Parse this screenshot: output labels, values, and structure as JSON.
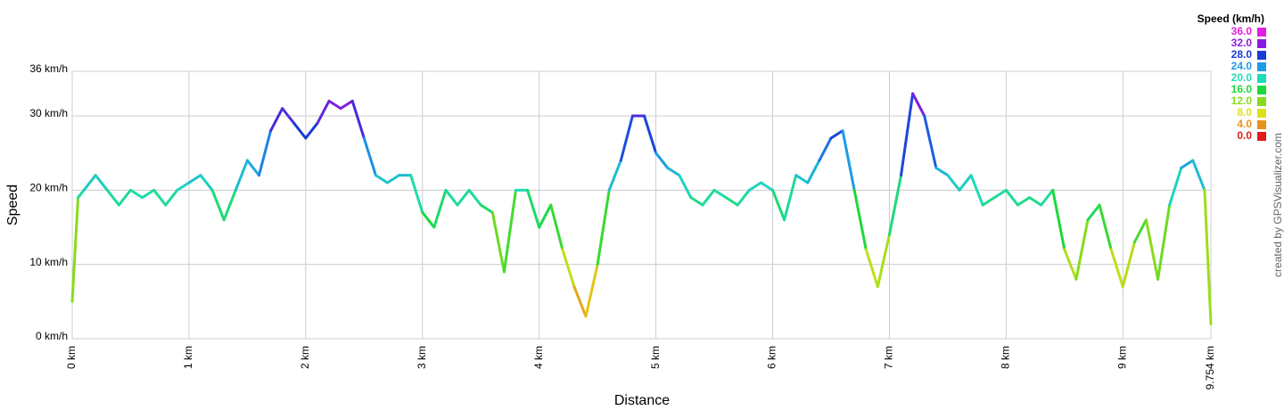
{
  "chart_data": {
    "type": "line",
    "x_label": "Distance",
    "y_label": "Speed",
    "credit": "created by GPSVisualizer.com",
    "legend": {
      "title": "Speed (km/h)",
      "stops": [
        {
          "value": 36,
          "label": "36.0",
          "color": "#e31ee3"
        },
        {
          "value": 32,
          "label": "32.0",
          "color": "#8a1be0"
        },
        {
          "value": 28,
          "label": "28.0",
          "color": "#1a3ad8"
        },
        {
          "value": 24,
          "label": "24.0",
          "color": "#1e9be6"
        },
        {
          "value": 20,
          "label": "20.0",
          "color": "#1edcb8"
        },
        {
          "value": 16,
          "label": "16.0",
          "color": "#1ed83a"
        },
        {
          "value": 12,
          "label": "12.0",
          "color": "#86dc1a"
        },
        {
          "value": 8,
          "label": "8.0",
          "color": "#e0e01a"
        },
        {
          "value": 4,
          "label": "4.0",
          "color": "#e6941a"
        },
        {
          "value": 0,
          "label": "0.0",
          "color": "#e31a1a"
        }
      ]
    },
    "xlim": [
      0,
      9.754
    ],
    "ylim": [
      0,
      36
    ],
    "grid": true,
    "xticks": [
      {
        "value": 0,
        "label": "0 km"
      },
      {
        "value": 1,
        "label": "1 km"
      },
      {
        "value": 2,
        "label": "2 km"
      },
      {
        "value": 3,
        "label": "3 km"
      },
      {
        "value": 4,
        "label": "4 km"
      },
      {
        "value": 5,
        "label": "5 km"
      },
      {
        "value": 6,
        "label": "6 km"
      },
      {
        "value": 7,
        "label": "7 km"
      },
      {
        "value": 8,
        "label": "8 km"
      },
      {
        "value": 9,
        "label": "9 km"
      },
      {
        "value": 9.754,
        "label": "9.754 km"
      }
    ],
    "yticks": [
      {
        "value": 0,
        "label": "0 km/h"
      },
      {
        "value": 10,
        "label": "10 km/h"
      },
      {
        "value": 20,
        "label": "20 km/h"
      },
      {
        "value": 30,
        "label": "30 km/h"
      },
      {
        "value": 36,
        "label": "36 km/h"
      }
    ],
    "x": [
      0,
      0.05,
      0.1,
      0.2,
      0.3,
      0.4,
      0.5,
      0.6,
      0.7,
      0.8,
      0.9,
      1.0,
      1.1,
      1.2,
      1.3,
      1.4,
      1.5,
      1.6,
      1.7,
      1.8,
      1.9,
      2.0,
      2.1,
      2.2,
      2.3,
      2.4,
      2.5,
      2.6,
      2.7,
      2.8,
      2.9,
      3.0,
      3.1,
      3.2,
      3.3,
      3.4,
      3.5,
      3.6,
      3.7,
      3.8,
      3.9,
      4.0,
      4.1,
      4.2,
      4.3,
      4.4,
      4.5,
      4.6,
      4.7,
      4.8,
      4.9,
      5.0,
      5.1,
      5.2,
      5.3,
      5.4,
      5.5,
      5.6,
      5.7,
      5.8,
      5.9,
      6.0,
      6.1,
      6.2,
      6.3,
      6.4,
      6.5,
      6.6,
      6.7,
      6.8,
      6.9,
      7.0,
      7.1,
      7.2,
      7.3,
      7.4,
      7.5,
      7.6,
      7.7,
      7.8,
      7.9,
      8.0,
      8.1,
      8.2,
      8.3,
      8.4,
      8.5,
      8.6,
      8.7,
      8.8,
      8.9,
      9.0,
      9.1,
      9.2,
      9.3,
      9.4,
      9.5,
      9.6,
      9.7,
      9.754
    ],
    "values": [
      5,
      19,
      20,
      22,
      20,
      18,
      20,
      19,
      20,
      18,
      20,
      21,
      22,
      20,
      16,
      20,
      24,
      22,
      28,
      31,
      29,
      27,
      29,
      32,
      31,
      32,
      27,
      22,
      21,
      22,
      22,
      17,
      15,
      20,
      18,
      20,
      18,
      17,
      9,
      20,
      20,
      15,
      18,
      12,
      7,
      3,
      10,
      20,
      24,
      30,
      30,
      25,
      23,
      22,
      19,
      18,
      20,
      19,
      18,
      20,
      21,
      20,
      16,
      22,
      21,
      24,
      27,
      28,
      20,
      12,
      7,
      14,
      22,
      33,
      30,
      23,
      22,
      20,
      22,
      18,
      19,
      20,
      18,
      19,
      18,
      20,
      12,
      8,
      16,
      18,
      12,
      7,
      13,
      16,
      8,
      18,
      23,
      24,
      20,
      2
    ]
  }
}
